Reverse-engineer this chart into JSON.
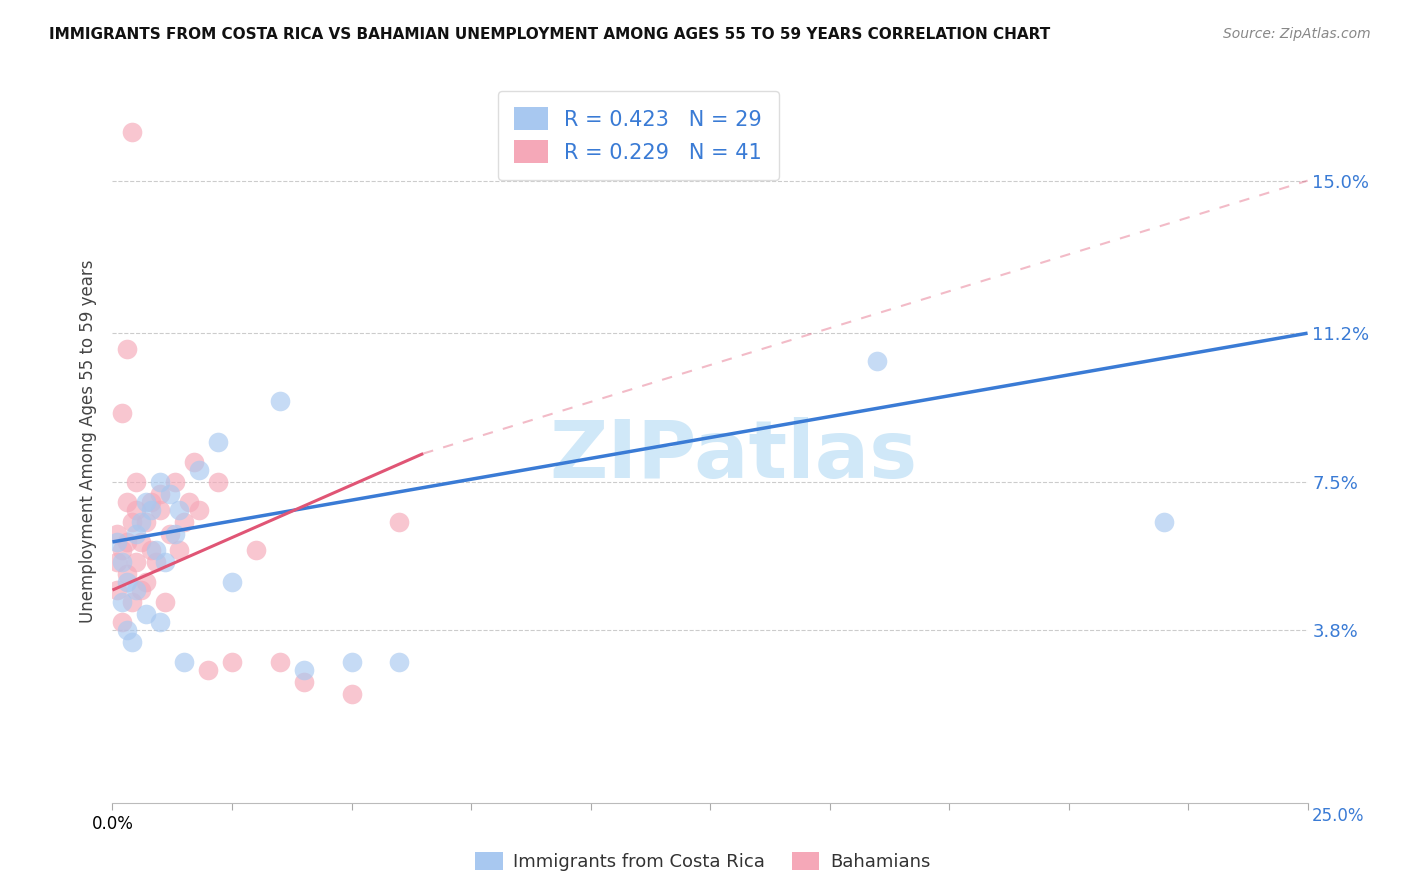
{
  "title": "IMMIGRANTS FROM COSTA RICA VS BAHAMIAN UNEMPLOYMENT AMONG AGES 55 TO 59 YEARS CORRELATION CHART",
  "source": "Source: ZipAtlas.com",
  "ylabel": "Unemployment Among Ages 55 to 59 years",
  "xlim": [
    0,
    0.25
  ],
  "ylim": [
    -0.005,
    0.175
  ],
  "ytick_positions": [
    0.038,
    0.075,
    0.112,
    0.15
  ],
  "ytick_labels": [
    "3.8%",
    "7.5%",
    "11.2%",
    "15.0%"
  ],
  "legend_r1": "R = 0.423",
  "legend_n1": "N = 29",
  "legend_r2": "R = 0.229",
  "legend_n2": "N = 41",
  "color_blue": "#a8c8f0",
  "color_pink": "#f5a8b8",
  "color_blue_line": "#3a7bd5",
  "color_pink_line": "#e05575",
  "color_blue_text": "#3a7bd5",
  "color_axis_label": "#3a7bd5",
  "watermark_color": "#d0e8f8",
  "blue_scatter_x": [
    0.001,
    0.002,
    0.002,
    0.003,
    0.003,
    0.004,
    0.005,
    0.005,
    0.006,
    0.007,
    0.007,
    0.008,
    0.009,
    0.01,
    0.01,
    0.011,
    0.012,
    0.013,
    0.014,
    0.015,
    0.018,
    0.022,
    0.04,
    0.06,
    0.16,
    0.22,
    0.035,
    0.025,
    0.05
  ],
  "blue_scatter_y": [
    0.06,
    0.055,
    0.045,
    0.05,
    0.038,
    0.035,
    0.048,
    0.062,
    0.065,
    0.042,
    0.07,
    0.068,
    0.058,
    0.04,
    0.075,
    0.055,
    0.072,
    0.062,
    0.068,
    0.03,
    0.078,
    0.085,
    0.028,
    0.03,
    0.105,
    0.065,
    0.095,
    0.05,
    0.03
  ],
  "pink_scatter_x": [
    0.001,
    0.001,
    0.001,
    0.002,
    0.002,
    0.003,
    0.003,
    0.003,
    0.004,
    0.004,
    0.005,
    0.005,
    0.005,
    0.006,
    0.006,
    0.007,
    0.007,
    0.008,
    0.008,
    0.009,
    0.01,
    0.01,
    0.011,
    0.012,
    0.013,
    0.014,
    0.015,
    0.016,
    0.017,
    0.018,
    0.02,
    0.022,
    0.025,
    0.03,
    0.035,
    0.04,
    0.05,
    0.06,
    0.002,
    0.003,
    0.004
  ],
  "pink_scatter_y": [
    0.055,
    0.062,
    0.048,
    0.058,
    0.04,
    0.06,
    0.052,
    0.07,
    0.045,
    0.065,
    0.068,
    0.055,
    0.075,
    0.06,
    0.048,
    0.05,
    0.065,
    0.058,
    0.07,
    0.055,
    0.072,
    0.068,
    0.045,
    0.062,
    0.075,
    0.058,
    0.065,
    0.07,
    0.08,
    0.068,
    0.028,
    0.075,
    0.03,
    0.058,
    0.03,
    0.025,
    0.022,
    0.065,
    0.092,
    0.108,
    0.162
  ],
  "blue_line_x0": 0.0,
  "blue_line_x1": 0.25,
  "blue_line_y0": 0.06,
  "blue_line_y1": 0.112,
  "pink_line_solid_x0": 0.0,
  "pink_line_solid_x1": 0.065,
  "pink_line_solid_y0": 0.048,
  "pink_line_solid_y1": 0.082,
  "pink_line_dash_x0": 0.065,
  "pink_line_dash_x1": 0.25,
  "pink_line_dash_y0": 0.082,
  "pink_line_dash_y1": 0.15,
  "legend_label_1": "Immigrants from Costa Rica",
  "legend_label_2": "Bahamians"
}
